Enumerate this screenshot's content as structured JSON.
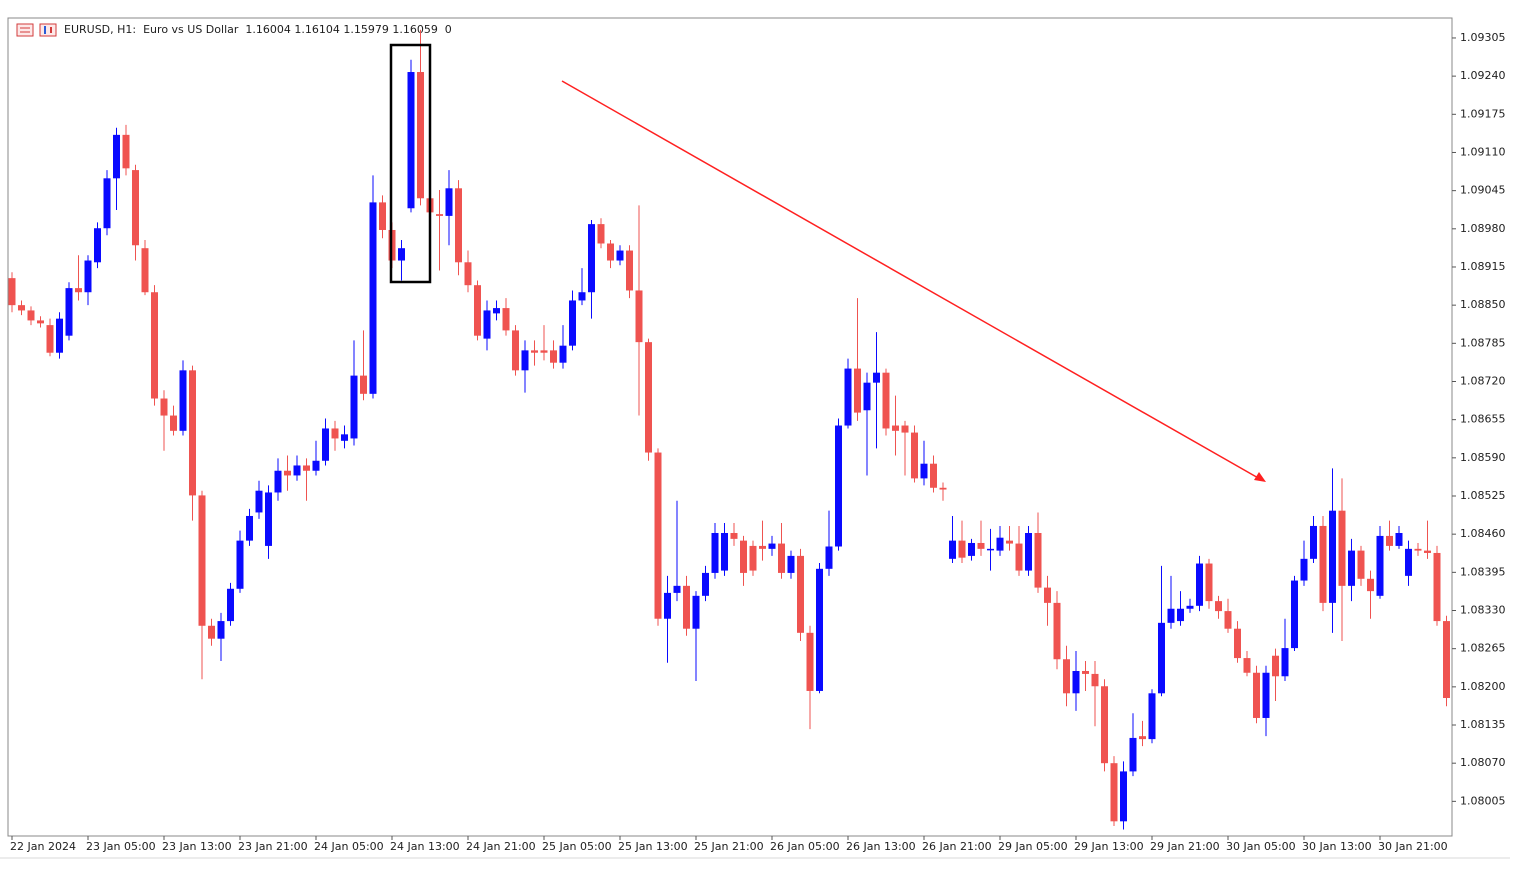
{
  "chart_data": {
    "type": "candlestick",
    "title": "EURUSD, H1:  Euro vs US Dollar  1.16004 1.16104 1.15979 1.16059  0",
    "up_color": "#0a0aff",
    "down_color": "#ef5350",
    "ylim": [
      1.07946,
      1.09339
    ],
    "yticks": [
      1.09305,
      {
        "value": 1.0924,
        "label": "1.09240"
      },
      1.09175,
      {
        "value": 1.0911,
        "label": "1.09110"
      },
      1.09045,
      {
        "value": 1.0898,
        "label": "1.08980"
      },
      1.08915,
      {
        "value": 1.0885,
        "label": "1.08850"
      },
      1.08785,
      {
        "value": 1.0872,
        "label": "1.08720"
      },
      1.08655,
      {
        "value": 1.0859,
        "label": "1.08590"
      },
      1.08525,
      {
        "value": 1.0846,
        "label": "1.08460"
      },
      1.08395,
      {
        "value": 1.0833,
        "label": "1.08330"
      },
      1.08265,
      {
        "value": 1.082,
        "label": "1.08200"
      },
      1.08135,
      {
        "value": 1.0807,
        "label": "1.08070"
      },
      1.08005
    ],
    "categories": [
      "22 Jan 2024",
      null,
      null,
      null,
      null,
      null,
      null,
      null,
      "23 Jan 05:00",
      null,
      null,
      null,
      null,
      null,
      null,
      null,
      "23 Jan 13:00",
      null,
      null,
      null,
      null,
      null,
      null,
      null,
      "23 Jan 21:00",
      null,
      null,
      null,
      null,
      null,
      null,
      null,
      "24 Jan 05:00",
      null,
      null,
      null,
      null,
      null,
      null,
      null,
      "24 Jan 13:00",
      null,
      null,
      null,
      null,
      null,
      null,
      null,
      "24 Jan 21:00",
      null,
      null,
      null,
      null,
      null,
      null,
      null,
      "25 Jan 05:00",
      null,
      null,
      null,
      null,
      null,
      null,
      null,
      "25 Jan 13:00",
      null,
      null,
      null,
      null,
      null,
      null,
      null,
      "25 Jan 21:00",
      null,
      null,
      null,
      null,
      null,
      null,
      null,
      "26 Jan 05:00",
      null,
      null,
      null,
      null,
      null,
      null,
      null,
      "26 Jan 13:00",
      null,
      null,
      null,
      null,
      null,
      null,
      null,
      "26 Jan 21:00",
      null,
      null,
      null,
      null,
      null,
      null,
      null,
      "29 Jan 05:00",
      null,
      null,
      null,
      null,
      null,
      null,
      null,
      "29 Jan 13:00",
      null,
      null,
      null,
      null,
      null,
      null,
      null,
      "29 Jan 21:00",
      null,
      null,
      null,
      null,
      null,
      null,
      null,
      "30 Jan 05:00",
      null,
      null,
      null,
      null,
      null,
      null,
      null,
      "30 Jan 13:00",
      null,
      null,
      null,
      null,
      null,
      null,
      null,
      "30 Jan 21:00",
      null,
      null,
      null,
      null,
      null,
      null,
      null
    ],
    "ohlc": [
      [
        1.08896,
        1.08906,
        1.08838,
        1.0885
      ],
      [
        1.0885,
        1.08858,
        1.08833,
        1.08841
      ],
      [
        1.08841,
        1.08848,
        1.08816,
        1.08824
      ],
      [
        1.08824,
        1.08831,
        1.08812,
        1.08819
      ],
      [
        1.08816,
        1.08827,
        1.08763,
        1.08769
      ],
      [
        1.08769,
        1.08838,
        1.08759,
        1.08827
      ],
      [
        1.08798,
        1.08889,
        1.0879,
        1.08879
      ],
      [
        1.08879,
        1.08935,
        1.08858,
        1.08872
      ],
      [
        1.08872,
        1.08935,
        1.0885,
        1.08926
      ],
      [
        1.08923,
        1.08991,
        1.08913,
        1.08981
      ],
      [
        1.08981,
        1.0908,
        1.08969,
        1.09066
      ],
      [
        1.09066,
        1.09152,
        1.09012,
        1.0914
      ],
      [
        1.0914,
        1.09157,
        1.09071,
        1.09083
      ],
      [
        1.0908,
        1.09089,
        1.08926,
        1.08952
      ],
      [
        1.08947,
        1.08961,
        1.08867,
        1.08872
      ],
      [
        1.08872,
        1.08884,
        1.08679,
        1.08691
      ],
      [
        1.08691,
        1.08705,
        1.08602,
        1.08662
      ],
      [
        1.08662,
        1.08679,
        1.08628,
        1.08636
      ],
      [
        1.08636,
        1.08756,
        1.08628,
        1.08739
      ],
      [
        1.08739,
        1.08747,
        1.08483,
        1.08526
      ],
      [
        1.08526,
        1.08534,
        1.08213,
        1.08304
      ],
      [
        1.08304,
        1.08316,
        1.0827,
        1.08282
      ],
      [
        1.08282,
        1.08326,
        1.08244,
        1.08312
      ],
      [
        1.08312,
        1.08377,
        1.08304,
        1.08367
      ],
      [
        1.08367,
        1.08466,
        1.0836,
        1.08449
      ],
      [
        1.08449,
        1.08503,
        1.0844,
        1.08491
      ],
      [
        1.08497,
        1.08551,
        1.08486,
        1.08534
      ],
      [
        1.0844,
        1.08543,
        1.08418,
        1.08531
      ],
      [
        1.08531,
        1.08589,
        1.08517,
        1.08568
      ],
      [
        1.08568,
        1.08594,
        1.08534,
        1.0856
      ],
      [
        1.0856,
        1.08594,
        1.08551,
        1.08577
      ],
      [
        1.08577,
        1.08589,
        1.08517,
        1.08568
      ],
      [
        1.08568,
        1.08619,
        1.0856,
        1.08585
      ],
      [
        1.08585,
        1.08657,
        1.08577,
        1.0864
      ],
      [
        1.0864,
        1.08653,
        1.08602,
        1.08623
      ],
      [
        1.08619,
        1.08645,
        1.08606,
        1.0863
      ],
      [
        1.08623,
        1.0879,
        1.08611,
        1.0873
      ],
      [
        1.0873,
        1.08807,
        1.08688,
        1.08699
      ],
      [
        1.08699,
        1.09071,
        1.08691,
        1.09025
      ],
      [
        1.09025,
        1.09037,
        1.08964,
        1.08978
      ],
      [
        1.08978,
        1.08991,
        1.08913,
        1.08926
      ],
      [
        1.08926,
        1.08961,
        1.08892,
        1.08947
      ],
      [
        1.09015,
        1.09268,
        1.09008,
        1.09247
      ],
      [
        1.09247,
        1.09319,
        1.0902,
        1.09032
      ],
      [
        1.09032,
        1.09046,
        1.08952,
        1.09008
      ],
      [
        1.09005,
        1.09046,
        1.08909,
        1.09002
      ],
      [
        1.09002,
        1.0908,
        1.08952,
        1.09049
      ],
      [
        1.09049,
        1.09063,
        1.08901,
        1.08923
      ],
      [
        1.08923,
        1.08943,
        1.08872,
        1.08884
      ],
      [
        1.08884,
        1.08892,
        1.0879,
        1.08798
      ],
      [
        1.08793,
        1.08858,
        1.08773,
        1.08841
      ],
      [
        1.08836,
        1.08858,
        1.08824,
        1.08845
      ],
      [
        1.08845,
        1.08862,
        1.08798,
        1.08807
      ],
      [
        1.08807,
        1.08816,
        1.0873,
        1.08739
      ],
      [
        1.08739,
        1.0879,
        1.08701,
        1.08773
      ],
      [
        1.08773,
        1.0879,
        1.08747,
        1.08769
      ],
      [
        1.08773,
        1.08816,
        1.08756,
        1.08769
      ],
      [
        1.08773,
        1.0879,
        1.08742,
        1.08752
      ],
      [
        1.08752,
        1.08816,
        1.08742,
        1.08781
      ],
      [
        1.08781,
        1.08875,
        1.08773,
        1.08858
      ],
      [
        1.08858,
        1.08913,
        1.0885,
        1.08872
      ],
      [
        1.08872,
        1.08995,
        1.08827,
        1.08988
      ],
      [
        1.08988,
        1.08998,
        1.08947,
        1.08955
      ],
      [
        1.08955,
        1.08961,
        1.08913,
        1.08926
      ],
      [
        1.08926,
        1.08952,
        1.08918,
        1.08943
      ],
      [
        1.08943,
        1.08952,
        1.08862,
        1.08875
      ],
      [
        1.08875,
        1.0902,
        1.08662,
        1.08787
      ],
      [
        1.08787,
        1.08793,
        1.08585,
        1.08599
      ],
      [
        1.08599,
        1.08606,
        1.08304,
        1.08316
      ],
      [
        1.08316,
        1.08389,
        1.08241,
        1.0836
      ],
      [
        1.0836,
        1.08517,
        1.08346,
        1.08372
      ],
      [
        1.08372,
        1.08389,
        1.08287,
        1.08299
      ],
      [
        1.08299,
        1.08363,
        1.0821,
        1.08355
      ],
      [
        1.08355,
        1.08406,
        1.08346,
        1.08394
      ],
      [
        1.08394,
        1.08479,
        1.08384,
        1.08462
      ],
      [
        1.08398,
        1.08479,
        1.08389,
        1.08462
      ],
      [
        1.08462,
        1.08479,
        1.0844,
        1.08452
      ],
      [
        1.08449,
        1.08457,
        1.08372,
        1.08394
      ],
      [
        1.0844,
        1.08449,
        1.08389,
        1.08398
      ],
      [
        1.0844,
        1.08483,
        1.08415,
        1.08435
      ],
      [
        1.08435,
        1.08457,
        1.08423,
        1.08444
      ],
      [
        1.08444,
        1.08479,
        1.08384,
        1.08394
      ],
      [
        1.08394,
        1.08432,
        1.08384,
        1.08423
      ],
      [
        1.08423,
        1.08435,
        1.08278,
        1.08292
      ],
      [
        1.08292,
        1.08304,
        1.08128,
        1.08193
      ],
      [
        1.08193,
        1.08411,
        1.08189,
        1.08401
      ],
      [
        1.08401,
        1.085,
        1.08389,
        1.08439
      ],
      [
        1.08439,
        1.08657,
        1.08432,
        1.08645
      ],
      [
        1.08645,
        1.08759,
        1.0864,
        1.08742
      ],
      [
        1.08742,
        1.08862,
        1.08653,
        1.08667
      ],
      [
        1.08671,
        1.08735,
        1.0856,
        1.08718
      ],
      [
        1.08718,
        1.08804,
        1.08606,
        1.08735
      ],
      [
        1.08735,
        1.08742,
        1.08628,
        1.0864
      ],
      [
        1.08645,
        1.08696,
        1.08594,
        1.08636
      ],
      [
        1.08645,
        1.08653,
        1.0856,
        1.08633
      ],
      [
        1.08633,
        1.08645,
        1.08548,
        1.08555
      ],
      [
        1.08555,
        1.08619,
        1.08543,
        1.0858
      ],
      [
        1.0858,
        1.08594,
        1.08531,
        1.08539
      ],
      [
        1.08539,
        1.08548,
        1.08517,
        1.08536
      ],
      [
        1.08418,
        1.08491,
        1.08411,
        1.08449
      ],
      [
        1.08449,
        1.08483,
        1.08411,
        1.0842
      ],
      [
        1.08423,
        1.08452,
        1.08415,
        1.08445
      ],
      [
        1.08445,
        1.08483,
        1.08423,
        1.08435
      ],
      [
        1.08435,
        1.08469,
        1.08398,
        1.08435
      ],
      [
        1.08432,
        1.08474,
        1.08423,
        1.08454
      ],
      [
        1.08449,
        1.08474,
        1.08432,
        1.08444
      ],
      [
        1.08444,
        1.08474,
        1.08389,
        1.08398
      ],
      [
        1.08398,
        1.08474,
        1.08389,
        1.08462
      ],
      [
        1.08462,
        1.08497,
        1.0836,
        1.08369
      ],
      [
        1.08369,
        1.08389,
        1.08304,
        1.08343
      ],
      [
        1.08343,
        1.08363,
        1.0823,
        1.08247
      ],
      [
        1.08247,
        1.0827,
        1.08167,
        1.08189
      ],
      [
        1.08189,
        1.08261,
        1.08159,
        1.08227
      ],
      [
        1.08227,
        1.08244,
        1.08193,
        1.08222
      ],
      [
        1.08222,
        1.08244,
        1.08133,
        1.08201
      ],
      [
        1.08201,
        1.08213,
        1.08056,
        1.0807
      ],
      [
        1.0807,
        1.08082,
        1.07963,
        1.07971
      ],
      [
        1.07971,
        1.08073,
        1.07957,
        1.08056
      ],
      [
        1.08056,
        1.08155,
        1.08048,
        1.08113
      ],
      [
        1.08116,
        1.08142,
        1.08099,
        1.08111
      ],
      [
        1.08111,
        1.08196,
        1.08104,
        1.08189
      ],
      [
        1.08189,
        1.08406,
        1.08184,
        1.08309
      ],
      [
        1.08309,
        1.08389,
        1.08299,
        1.08333
      ],
      [
        1.08312,
        1.08363,
        1.08304,
        1.08333
      ],
      [
        1.08333,
        1.0835,
        1.08326,
        1.08338
      ],
      [
        1.08338,
        1.08423,
        1.08329,
        1.0841
      ],
      [
        1.0841,
        1.08418,
        1.08333,
        1.08346
      ],
      [
        1.08346,
        1.08355,
        1.08316,
        1.08329
      ],
      [
        1.08329,
        1.0835,
        1.08292,
        1.08299
      ],
      [
        1.08299,
        1.08312,
        1.08241,
        1.08249
      ],
      [
        1.08249,
        1.08261,
        1.08218,
        1.08224
      ],
      [
        1.08224,
        1.08236,
        1.08138,
        1.08147
      ],
      [
        1.08147,
        1.08236,
        1.08116,
        1.08224
      ],
      [
        1.08253,
        1.08265,
        1.08176,
        1.08218
      ],
      [
        1.08218,
        1.08316,
        1.0821,
        1.08266
      ],
      [
        1.08266,
        1.08389,
        1.08261,
        1.08381
      ],
      [
        1.08381,
        1.08449,
        1.08372,
        1.08418
      ],
      [
        1.08418,
        1.08491,
        1.08411,
        1.08474
      ],
      [
        1.08474,
        1.08491,
        1.08329,
        1.08343
      ],
      [
        1.08343,
        1.08572,
        1.08292,
        1.085
      ],
      [
        1.085,
        1.08555,
        1.08278,
        1.08372
      ],
      [
        1.08372,
        1.08452,
        1.08346,
        1.08432
      ],
      [
        1.08432,
        1.0844,
        1.08372,
        1.08384
      ],
      [
        1.08384,
        1.08398,
        1.08316,
        1.08363
      ],
      [
        1.08355,
        1.08474,
        1.0835,
        1.08457
      ],
      [
        1.08457,
        1.08483,
        1.08432,
        1.0844
      ],
      [
        1.0844,
        1.08474,
        1.08435,
        1.08462
      ],
      [
        1.08389,
        1.08449,
        1.08372,
        1.08435
      ],
      [
        1.08435,
        1.08445,
        1.08423,
        1.08432
      ],
      [
        1.08432,
        1.08483,
        1.08418,
        1.08428
      ],
      [
        1.08428,
        1.0844,
        1.08304,
        1.08312
      ],
      [
        1.08312,
        1.08321,
        1.08167,
        1.08181
      ]
    ]
  }
}
